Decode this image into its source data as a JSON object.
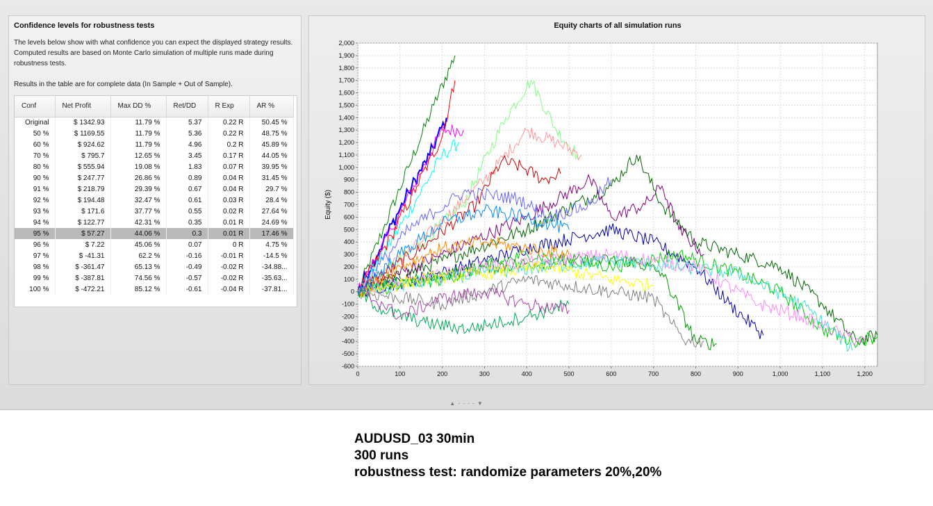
{
  "left_panel": {
    "title": "Confidence levels for robustness tests",
    "description": "The levels below show with what confidence you can expect the displayed strategy results. Computed results are based on Monte Carlo simulation of multiple runs made during robustness tests.",
    "note": "Results in the table are for complete data (In Sample + Out of Sample).",
    "table": {
      "columns": [
        "Conf",
        "Net Profit",
        "Max DD %",
        "Ret/DD",
        "R Exp",
        "AR %"
      ],
      "selected_row": 10,
      "rows": [
        [
          "Original",
          "$ 1342.93",
          "11.79 %",
          "5.37",
          "0.22 R",
          "50.45 %"
        ],
        [
          "50 %",
          "$ 1169.55",
          "11.79 %",
          "5.36",
          "0.22 R",
          "48.75 %"
        ],
        [
          "60 %",
          "$ 924.62",
          "11.79 %",
          "4.96",
          "0.2 R",
          "45.89 %"
        ],
        [
          "70 %",
          "$ 795.7",
          "12.65 %",
          "3.45",
          "0.17 R",
          "44.05 %"
        ],
        [
          "80 %",
          "$ 555.94",
          "19.08 %",
          "1.83",
          "0.07 R",
          "39.95 %"
        ],
        [
          "90 %",
          "$ 247.77",
          "26.86 %",
          "0.89",
          "0.04 R",
          "31.45 %"
        ],
        [
          "91 %",
          "$ 218.79",
          "29.39 %",
          "0.67",
          "0.04 R",
          "29.7 %"
        ],
        [
          "92 %",
          "$ 194.48",
          "32.47 %",
          "0.61",
          "0.03 R",
          "28.4 %"
        ],
        [
          "93 %",
          "$ 171.6",
          "37.77 %",
          "0.55",
          "0.02 R",
          "27.64 %"
        ],
        [
          "94 %",
          "$ 122.77",
          "42.31 %",
          "0.35",
          "0.01 R",
          "24.69 %"
        ],
        [
          "95 %",
          "$ 57.27",
          "44.06 %",
          "0.3",
          "0.01 R",
          "17.46 %"
        ],
        [
          "96 %",
          "$ 7.22",
          "45.06 %",
          "0.07",
          "0 R",
          "4.75 %"
        ],
        [
          "97 %",
          "$ -41.31",
          "62.2 %",
          "-0.16",
          "-0.01 R",
          "-14.5 %"
        ],
        [
          "98 %",
          "$ -361.47",
          "65.13 %",
          "-0.49",
          "-0.02 R",
          "-34.88..."
        ],
        [
          "99 %",
          "$ -387.81",
          "74.56 %",
          "-0.57",
          "-0.02 R",
          "-35.63..."
        ],
        [
          "100 %",
          "$ -472.21",
          "85.12 %",
          "-0.61",
          "-0.04 R",
          "-37.81..."
        ]
      ]
    }
  },
  "chart": {
    "title": "Equity charts of all simulation runs",
    "ylabel": "Equity ($)"
  },
  "chart_data": {
    "type": "line",
    "title": "Equity charts of all simulation runs",
    "xlabel": "",
    "ylabel": "Equity ($)",
    "xlim": [
      0,
      1230
    ],
    "ylim": [
      -600,
      2000
    ],
    "x_ticks": [
      "0",
      "100",
      "200",
      "300",
      "400",
      "500",
      "600",
      "700",
      "800",
      "900",
      "1,000",
      "1,100",
      "1,200"
    ],
    "y_ticks": [
      "2,000",
      "1,900",
      "1,800",
      "1,700",
      "1,600",
      "1,500",
      "1,400",
      "1,300",
      "1,200",
      "1,100",
      "1,000",
      "900",
      "800",
      "700",
      "600",
      "500",
      "400",
      "300",
      "200",
      "100",
      "0",
      "-100",
      "-200",
      "-300",
      "-400",
      "-500",
      "-600"
    ],
    "grid": true,
    "legend": "none",
    "series_count_note": "",
    "series": [
      {
        "color": "#008000",
        "points": [
          [
            0,
            0
          ],
          [
            60,
            500
          ],
          [
            120,
            1000
          ],
          [
            180,
            1500
          ],
          [
            230,
            1900
          ]
        ]
      },
      {
        "color": "#0000ff",
        "points": [
          [
            0,
            0
          ],
          [
            60,
            400
          ],
          [
            120,
            800
          ],
          [
            170,
            1100
          ],
          [
            210,
            1400
          ]
        ]
      },
      {
        "color": "#ff00ff",
        "points": [
          [
            0,
            0
          ],
          [
            80,
            500
          ],
          [
            140,
            900
          ],
          [
            200,
            1300
          ],
          [
            250,
            1300
          ]
        ]
      },
      {
        "color": "#00ffff",
        "points": [
          [
            0,
            0
          ],
          [
            70,
            350
          ],
          [
            140,
            750
          ],
          [
            200,
            1100
          ],
          [
            240,
            1200
          ]
        ]
      },
      {
        "color": "#ff0000",
        "points": [
          [
            0,
            0
          ],
          [
            80,
            450
          ],
          [
            140,
            850
          ],
          [
            200,
            1250
          ],
          [
            230,
            1700
          ]
        ]
      },
      {
        "color": "#80ff80",
        "points": [
          [
            0,
            0
          ],
          [
            120,
            300
          ],
          [
            250,
            700
          ],
          [
            350,
            1400
          ],
          [
            410,
            1700
          ],
          [
            470,
            1300
          ],
          [
            520,
            1100
          ]
        ]
      },
      {
        "color": "#ff9999",
        "points": [
          [
            0,
            0
          ],
          [
            150,
            400
          ],
          [
            300,
            900
          ],
          [
            400,
            1300
          ],
          [
            470,
            1200
          ],
          [
            530,
            1100
          ]
        ]
      },
      {
        "color": "#cc0000",
        "points": [
          [
            0,
            0
          ],
          [
            150,
            350
          ],
          [
            280,
            700
          ],
          [
            340,
            1050
          ],
          [
            390,
            1000
          ],
          [
            440,
            900
          ],
          [
            480,
            950
          ]
        ]
      },
      {
        "color": "#006600",
        "points": [
          [
            0,
            0
          ],
          [
            200,
            250
          ],
          [
            400,
            500
          ],
          [
            600,
            850
          ],
          [
            660,
            1100
          ],
          [
            720,
            700
          ],
          [
            800,
            400
          ],
          [
            900,
            300
          ],
          [
            1000,
            200
          ],
          [
            1100,
            -100
          ],
          [
            1180,
            -400
          ],
          [
            1230,
            -350
          ]
        ]
      },
      {
        "color": "#800080",
        "points": [
          [
            0,
            0
          ],
          [
            200,
            300
          ],
          [
            400,
            600
          ],
          [
            550,
            900
          ],
          [
            600,
            600
          ],
          [
            680,
            700
          ],
          [
            720,
            850
          ],
          [
            760,
            500
          ],
          [
            820,
            300
          ]
        ]
      },
      {
        "color": "#0000aa",
        "points": [
          [
            0,
            0
          ],
          [
            200,
            150
          ],
          [
            400,
            350
          ],
          [
            600,
            500
          ],
          [
            700,
            400
          ],
          [
            800,
            200
          ],
          [
            880,
            -100
          ],
          [
            960,
            -350
          ]
        ]
      },
      {
        "color": "#00cc00",
        "points": [
          [
            0,
            0
          ],
          [
            200,
            100
          ],
          [
            400,
            300
          ],
          [
            600,
            200
          ],
          [
            760,
            300
          ],
          [
            900,
            150
          ],
          [
            1000,
            0
          ],
          [
            1100,
            -300
          ],
          [
            1170,
            -400
          ],
          [
            1230,
            -360
          ]
        ]
      },
      {
        "color": "#009900",
        "points": [
          [
            0,
            0
          ],
          [
            150,
            100
          ],
          [
            300,
            200
          ],
          [
            500,
            250
          ],
          [
            650,
            250
          ],
          [
            720,
            150
          ],
          [
            800,
            -400
          ],
          [
            850,
            -420
          ]
        ]
      },
      {
        "color": "#808080",
        "points": [
          [
            0,
            0
          ],
          [
            200,
            -100
          ],
          [
            400,
            100
          ],
          [
            600,
            0
          ],
          [
            700,
            -50
          ],
          [
            740,
            -250
          ],
          [
            780,
            -400
          ],
          [
            820,
            -400
          ]
        ]
      },
      {
        "color": "#ff88ff",
        "points": [
          [
            0,
            0
          ],
          [
            300,
            200
          ],
          [
            600,
            300
          ],
          [
            800,
            200
          ],
          [
            950,
            -100
          ],
          [
            1050,
            -200
          ],
          [
            1150,
            -350
          ],
          [
            1200,
            -400
          ]
        ]
      },
      {
        "color": "#40e0d0",
        "points": [
          [
            0,
            0
          ],
          [
            300,
            150
          ],
          [
            600,
            250
          ],
          [
            900,
            150
          ],
          [
            1050,
            -100
          ],
          [
            1120,
            -300
          ],
          [
            1170,
            -470
          ]
        ]
      },
      {
        "color": "#ffff00",
        "points": [
          [
            0,
            0
          ],
          [
            150,
            100
          ],
          [
            300,
            150
          ],
          [
            450,
            200
          ],
          [
            600,
            100
          ],
          [
            700,
            50
          ]
        ]
      },
      {
        "color": "#ff8800",
        "points": [
          [
            0,
            0
          ],
          [
            100,
            200
          ],
          [
            200,
            350
          ],
          [
            300,
            400
          ],
          [
            400,
            350
          ],
          [
            500,
            300
          ]
        ]
      },
      {
        "color": "#6666ff",
        "points": [
          [
            0,
            0
          ],
          [
            120,
            500
          ],
          [
            250,
            800
          ],
          [
            380,
            750
          ],
          [
            450,
            600
          ],
          [
            550,
            700
          ],
          [
            600,
            900
          ]
        ]
      },
      {
        "color": "#00aa55",
        "points": [
          [
            0,
            0
          ],
          [
            60,
            -150
          ],
          [
            160,
            -250
          ],
          [
            260,
            -300
          ],
          [
            400,
            -200
          ],
          [
            500,
            -100
          ]
        ]
      },
      {
        "color": "#aa44aa",
        "points": [
          [
            0,
            0
          ],
          [
            60,
            -100
          ],
          [
            100,
            -200
          ],
          [
            200,
            -50
          ],
          [
            300,
            0
          ],
          [
            400,
            -100
          ],
          [
            500,
            -150
          ]
        ]
      },
      {
        "color": "#0088ff",
        "points": [
          [
            0,
            0
          ],
          [
            100,
            300
          ],
          [
            200,
            550
          ],
          [
            300,
            650
          ],
          [
            400,
            600
          ],
          [
            500,
            500
          ]
        ]
      }
    ]
  },
  "splitter_grip": "▲ - - - - ▼",
  "caption": [
    "AUDUSD_03 30min",
    "300 runs",
    "robustness test: randomize parameters 20%,20%"
  ]
}
